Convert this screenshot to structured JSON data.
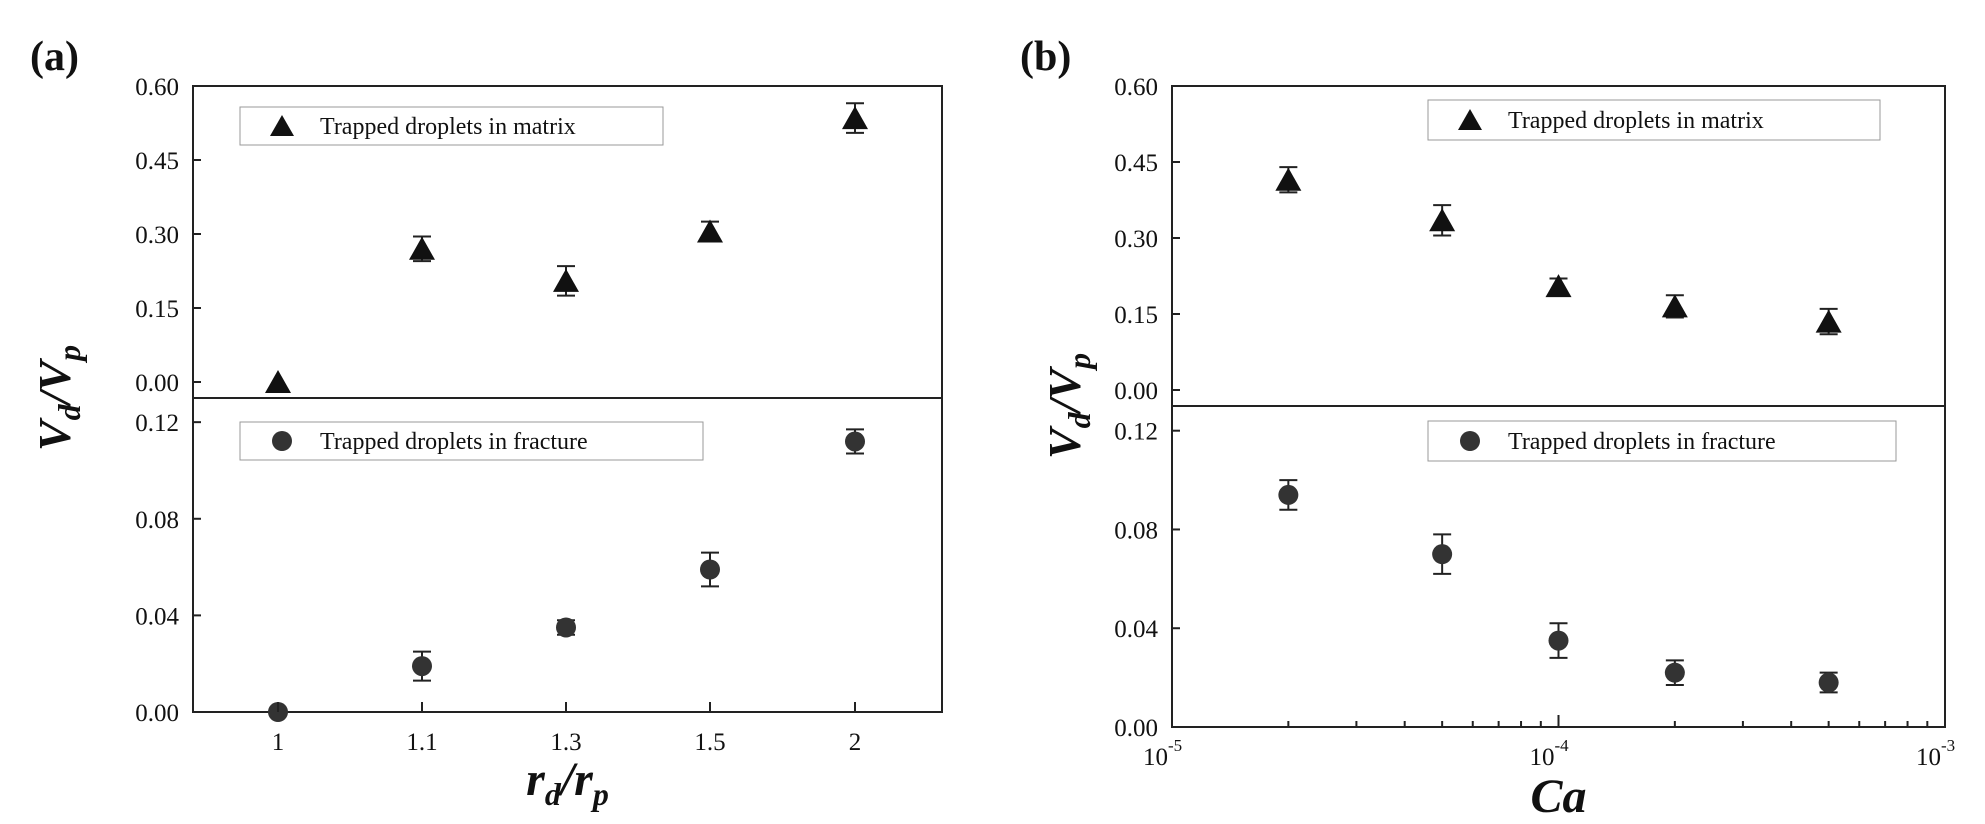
{
  "chart_data": [
    {
      "panel": "(a)",
      "type": "scatter",
      "ylabel": {
        "base": "V",
        "sub1": "d",
        "slash": "/",
        "base2": "V",
        "sub2": "p"
      },
      "xlabel": {
        "base": "r",
        "sub1": "d",
        "slash": "/",
        "base2": "r",
        "sub2": "p"
      },
      "x_scale": "categorical",
      "categories": [
        "1",
        "1.1",
        "1.3",
        "1.5",
        "2"
      ],
      "subplots": [
        {
          "position": "top",
          "ylim": [
            0,
            0.6
          ],
          "yticks": [
            "0.00",
            "0.15",
            "0.30",
            "0.45",
            "0.60"
          ],
          "series": [
            {
              "name": "Trapped droplets in matrix",
              "marker": "triangle",
              "values": [
                0.0,
                0.27,
                0.205,
                0.305,
                0.535
              ],
              "errors": [
                0.0,
                0.025,
                0.03,
                0.02,
                0.03
              ]
            }
          ]
        },
        {
          "position": "bottom",
          "ylim": [
            0,
            0.13
          ],
          "yticks": [
            "0.00",
            "0.04",
            "0.08",
            "0.12"
          ],
          "series": [
            {
              "name": "Trapped droplets in fracture",
              "marker": "circle",
              "values": [
                0.0,
                0.019,
                0.035,
                0.059,
                0.112
              ],
              "errors": [
                0.0,
                0.006,
                0.003,
                0.007,
                0.005
              ]
            }
          ]
        }
      ]
    },
    {
      "panel": "(b)",
      "type": "scatter",
      "ylabel": {
        "base": "V",
        "sub1": "d",
        "slash": "/",
        "base2": "V",
        "sub2": "p"
      },
      "xlabel": {
        "base": "Ca"
      },
      "x_scale": "log",
      "xlim": [
        1e-05,
        0.001
      ],
      "xticks": [
        {
          "value": 1e-05,
          "mantissa": "10",
          "exponent": "-5"
        },
        {
          "value": 0.0001,
          "mantissa": "10",
          "exponent": "-4"
        },
        {
          "value": 0.001,
          "mantissa": "10",
          "exponent": "-3"
        }
      ],
      "x": [
        2e-05,
        5e-05,
        0.0001,
        0.0002,
        0.0005
      ],
      "subplots": [
        {
          "position": "top",
          "ylim": [
            0,
            0.6
          ],
          "yticks": [
            "0.00",
            "0.15",
            "0.30",
            "0.45",
            "0.60"
          ],
          "series": [
            {
              "name": "Trapped droplets in matrix",
              "marker": "triangle",
              "values": [
                0.415,
                0.335,
                0.205,
                0.165,
                0.135
              ],
              "errors": [
                0.025,
                0.03,
                0.015,
                0.022,
                0.025
              ]
            }
          ]
        },
        {
          "position": "bottom",
          "ylim": [
            0,
            0.13
          ],
          "yticks": [
            "0.00",
            "0.04",
            "0.08",
            "0.12"
          ],
          "series": [
            {
              "name": "Trapped droplets in fracture",
              "marker": "circle",
              "values": [
                0.094,
                0.07,
                0.035,
                0.022,
                0.018
              ],
              "errors": [
                0.006,
                0.008,
                0.007,
                0.005,
                0.004
              ]
            }
          ]
        }
      ]
    }
  ]
}
